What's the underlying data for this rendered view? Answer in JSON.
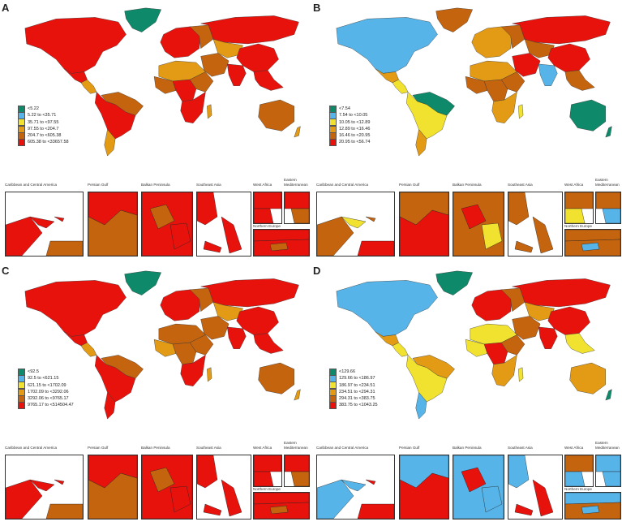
{
  "colors": {
    "c1": "#0e8a6a",
    "c2": "#56b4e9",
    "c3": "#f2e230",
    "c4": "#e39b16",
    "c5": "#c4640f",
    "c6": "#e8120d"
  },
  "inset_titles": {
    "caribbean": "Caribbean and Central America",
    "gulf": "Persian Gulf",
    "balkan": "Balkan Peninsula",
    "seasia": "Southeast Asia",
    "westafrica": "West Africa",
    "eastmed_line1": "Eastern",
    "eastmed_line2": "Mediterranean",
    "northeurope": "Northern Europe"
  },
  "panels": [
    {
      "letter": "A",
      "legend": [
        "<5.22",
        "5.22 to <35.71",
        "35.71 to <97.55",
        "97.55 to <204.7",
        "204.7 to <605.38",
        "605.38 to <33657.58"
      ]
    },
    {
      "letter": "B",
      "legend": [
        "<7.54",
        "7.54 to <10.05",
        "10.05 to <12.89",
        "12.89 to <16.46",
        "16.46 to <20.95",
        "20.95 to <56.74"
      ]
    },
    {
      "letter": "C",
      "legend": [
        "<92.5",
        "92.5 to <621.15",
        "621.15 to <1702.09",
        "1702.09 to <3292.06",
        "3292.06 to <9765.17",
        "9765.17 to <514504.47"
      ]
    },
    {
      "letter": "D",
      "legend": [
        "<129.66",
        "129.66 to <186.97",
        "186.97 to <234.51",
        "234.51 to <294.31",
        "294.31 to <383.75",
        "383.75 to <1043.25"
      ]
    }
  ]
}
